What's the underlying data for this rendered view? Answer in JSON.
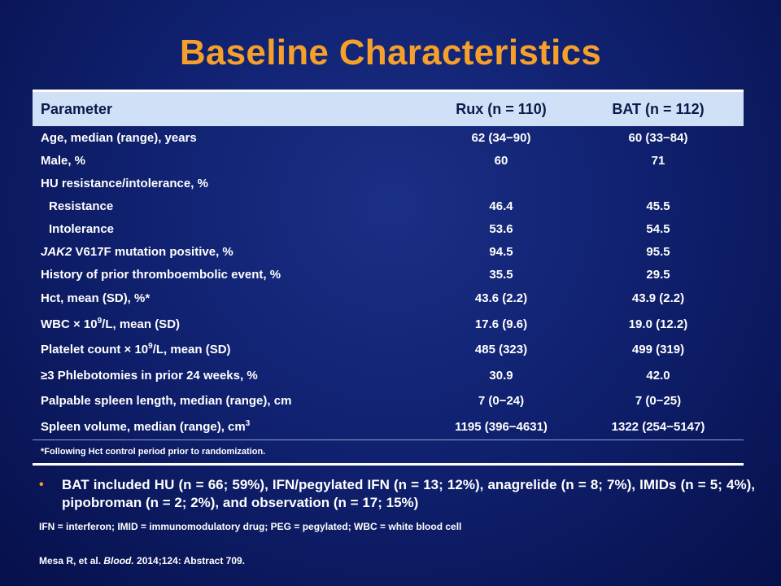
{
  "title": "Baseline Characteristics",
  "table": {
    "headers": {
      "parameter": "Parameter",
      "rux": "Rux (n = 110)",
      "bat": "BAT (n = 112)"
    },
    "rows": [
      {
        "parameter": "Age, median (range), years",
        "rux": "62 (34−90)",
        "bat": "60 (33−84)"
      },
      {
        "parameter": "Male, %",
        "rux": "60",
        "bat": "71"
      },
      {
        "parameter": "HU resistance/intolerance, %",
        "rux": "",
        "bat": ""
      },
      {
        "parameter": "Resistance",
        "rux": "46.4",
        "bat": "45.5"
      },
      {
        "parameter": "Intolerance",
        "rux": "53.6",
        "bat": "54.5"
      },
      {
        "parameter_italic": "JAK2",
        "parameter": " V617F mutation positive, %",
        "rux": "94.5",
        "bat": "95.5"
      },
      {
        "parameter": "History of prior thromboembolic event, %",
        "rux": "35.5",
        "bat": "29.5"
      },
      {
        "parameter": "Hct, mean (SD), %*",
        "rux": "43.6 (2.2)",
        "bat": "43.9 (2.2)"
      },
      {
        "parameter_pre": "WBC × 10",
        "parameter_sup": "9",
        "parameter": "/L, mean (SD)",
        "rux": "17.6 (9.6)",
        "bat": "19.0 (12.2)"
      },
      {
        "parameter_pre": "Platelet count × 10",
        "parameter_sup": "9",
        "parameter": "/L, mean (SD)",
        "rux": "485 (323)",
        "bat": "499 (319)"
      },
      {
        "parameter": "≥3 Phlebotomies in prior 24 weeks, %",
        "rux": "30.9",
        "bat": "42.0"
      },
      {
        "parameter": "Palpable spleen length, median (range), cm",
        "rux": "7 (0−24)",
        "bat": "7 (0−25)"
      },
      {
        "parameter_pre": "Spleen volume, median (range), cm",
        "parameter_sup": "3",
        "rux": "1195 (396−4631)",
        "bat": "1322 (254−5147)"
      }
    ],
    "footnote": "*Following Hct control period prior to randomization."
  },
  "bullet": {
    "marker": "•",
    "text": "BAT included HU (n = 66; 59%), IFN/pegylated IFN (n = 13; 12%), anagrelide (n = 8; 7%), IMIDs (n = 5; 4%), pipobroman (n = 2; 2%), and observation (n = 17; 15%)"
  },
  "abbreviations": "IFN = interferon; IMID = immunomodulatory  drug; PEG = pegylated; WBC = white blood cell",
  "citation": {
    "authors": "Mesa R, et al. ",
    "journal": "Blood.",
    "rest": " 2014;124: Abstract 709."
  }
}
